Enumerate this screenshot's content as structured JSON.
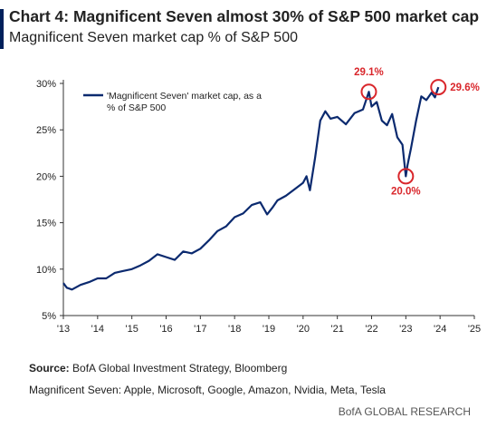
{
  "header": {
    "title": "Chart 4: Magnificent Seven almost 30% of S&P 500 market cap",
    "subtitle": "Magnificent Seven market cap % of S&P 500"
  },
  "colors": {
    "accent": "#00205b",
    "line": "#0b2a6f",
    "annotation": "#d9262b",
    "axis": "#333333"
  },
  "chart_data": {
    "type": "line",
    "title": "",
    "xlabel": "",
    "ylabel": "",
    "xlim": [
      2013,
      2025
    ],
    "ylim": [
      5,
      30
    ],
    "x_ticks": [
      "'13",
      "'14",
      "'15",
      "'16",
      "'17",
      "'18",
      "'19",
      "'20",
      "'21",
      "'22",
      "'23",
      "'24",
      "'25"
    ],
    "y_ticks": [
      "5%",
      "10%",
      "15%",
      "20%",
      "25%",
      "30%"
    ],
    "grid": false,
    "legend": {
      "position": "top-left",
      "entries": [
        "'Magnificent Seven' market cap, as a % of S&P 500"
      ]
    },
    "series": [
      {
        "name": "'Magnificent Seven' market cap, as a % of S&P 500",
        "x": [
          2013.0,
          2013.1,
          2013.25,
          2013.5,
          2013.75,
          2014.0,
          2014.25,
          2014.5,
          2014.75,
          2015.0,
          2015.25,
          2015.5,
          2015.75,
          2016.0,
          2016.25,
          2016.5,
          2016.75,
          2017.0,
          2017.25,
          2017.5,
          2017.75,
          2018.0,
          2018.25,
          2018.5,
          2018.75,
          2018.95,
          2019.1,
          2019.25,
          2019.5,
          2019.75,
          2020.0,
          2020.1,
          2020.2,
          2020.35,
          2020.5,
          2020.65,
          2020.8,
          2021.0,
          2021.25,
          2021.5,
          2021.75,
          2021.92,
          2022.0,
          2022.15,
          2022.3,
          2022.45,
          2022.6,
          2022.75,
          2022.9,
          2023.0,
          2023.05,
          2023.15,
          2023.3,
          2023.45,
          2023.6,
          2023.75,
          2023.85,
          2023.95
        ],
        "values": [
          8.5,
          8.0,
          7.8,
          8.3,
          8.6,
          9.0,
          9.0,
          9.6,
          9.8,
          10.0,
          10.4,
          10.9,
          11.6,
          11.3,
          11.0,
          11.9,
          11.7,
          12.2,
          13.1,
          14.1,
          14.6,
          15.6,
          16.0,
          16.9,
          17.2,
          15.9,
          16.6,
          17.4,
          17.9,
          18.6,
          19.3,
          20.0,
          18.5,
          22.0,
          26.0,
          27.0,
          26.2,
          26.4,
          25.6,
          26.8,
          27.2,
          29.1,
          27.5,
          28.0,
          26.0,
          25.5,
          26.7,
          24.2,
          23.4,
          20.0,
          21.2,
          23.0,
          26.0,
          28.6,
          28.2,
          29.0,
          28.5,
          29.6
        ]
      }
    ],
    "annotations": [
      {
        "label": "29.1%",
        "x": 2021.92,
        "y": 29.1
      },
      {
        "label": "20.0%",
        "x": 2023.0,
        "y": 20.0
      },
      {
        "label": "29.6%",
        "x": 2023.95,
        "y": 29.6
      }
    ]
  },
  "footer": {
    "source_label": "Source:",
    "source_text": " BofA Global Investment Strategy, Bloomberg",
    "note": "Magnificent Seven: Apple, Microsoft, Google, Amazon, Nvidia, Meta, Tesla",
    "brand": "BofA GLOBAL RESEARCH"
  }
}
